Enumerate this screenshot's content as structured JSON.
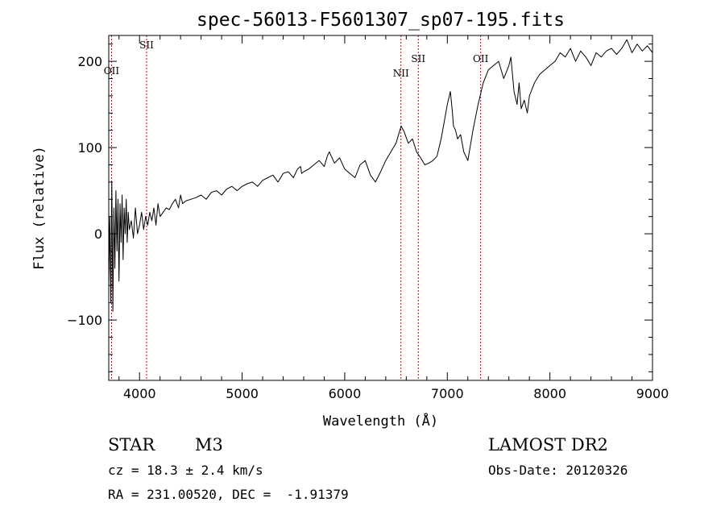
{
  "chart_data": {
    "type": "line",
    "title": "spec-56013-F5601307_sp07-195.fits",
    "xlabel": "Wavelength (Å)",
    "ylabel": "Flux (relative)",
    "xlim": [
      3700,
      9000
    ],
    "ylim": [
      -170,
      230
    ],
    "xticks": [
      4000,
      5000,
      6000,
      7000,
      8000,
      9000
    ],
    "yticks": [
      -100,
      0,
      100,
      200
    ],
    "grid": false,
    "line_color": "#000000",
    "marker_color": "#cc0000",
    "lines": [
      {
        "label": "OII",
        "x": 3727
      },
      {
        "label": "SII",
        "x": 4069
      },
      {
        "label": "NII",
        "x": 6548
      },
      {
        "label": "SII",
        "x": 6717
      },
      {
        "label": "OII",
        "x": 7325
      }
    ],
    "series": [
      {
        "x": [
          3700,
          3710,
          3720,
          3730,
          3740,
          3750,
          3760,
          3770,
          3780,
          3790,
          3800,
          3810,
          3820,
          3830,
          3840,
          3850,
          3860,
          3870,
          3880,
          3890,
          3900,
          3920,
          3940,
          3960,
          3980,
          4000,
          4020,
          4040,
          4060,
          4080,
          4100,
          4120,
          4140,
          4160,
          4180,
          4200,
          4230,
          4260,
          4290,
          4320,
          4350,
          4380,
          4400,
          4420,
          4450,
          4500,
          4550,
          4600,
          4650,
          4700,
          4750,
          4800,
          4850,
          4900,
          4950,
          5000,
          5050,
          5100,
          5150,
          5200,
          5250,
          5300,
          5350,
          5400,
          5450,
          5500,
          5540,
          5570,
          5580,
          5600,
          5650,
          5700,
          5750,
          5800,
          5830,
          5850,
          5900,
          5950,
          6000,
          6050,
          6100,
          6150,
          6200,
          6250,
          6300,
          6350,
          6400,
          6450,
          6500,
          6550,
          6580,
          6620,
          6660,
          6700,
          6740,
          6780,
          6820,
          6860,
          6900,
          6940,
          6970,
          7000,
          7030,
          7050,
          7060,
          7080,
          7100,
          7130,
          7160,
          7200,
          7250,
          7300,
          7350,
          7400,
          7450,
          7500,
          7550,
          7600,
          7620,
          7650,
          7680,
          7700,
          7720,
          7750,
          7780,
          7800,
          7850,
          7900,
          7950,
          8000,
          8050,
          8100,
          8150,
          8200,
          8250,
          8300,
          8350,
          8400,
          8450,
          8500,
          8550,
          8600,
          8650,
          8700,
          8750,
          8800,
          8850,
          8900,
          8950,
          9000
        ],
        "y": [
          -60,
          20,
          -80,
          60,
          -90,
          30,
          -40,
          50,
          -20,
          40,
          -55,
          35,
          -10,
          45,
          -30,
          30,
          0,
          40,
          -10,
          25,
          5,
          15,
          -5,
          30,
          0,
          10,
          25,
          5,
          20,
          10,
          25,
          15,
          30,
          10,
          35,
          20,
          25,
          30,
          28,
          35,
          40,
          30,
          45,
          35,
          38,
          40,
          42,
          45,
          40,
          48,
          50,
          45,
          52,
          55,
          50,
          55,
          58,
          60,
          55,
          62,
          65,
          68,
          60,
          70,
          72,
          65,
          75,
          78,
          70,
          72,
          75,
          80,
          85,
          78,
          90,
          95,
          82,
          88,
          75,
          70,
          65,
          80,
          85,
          68,
          60,
          72,
          85,
          95,
          105,
          125,
          118,
          105,
          110,
          95,
          88,
          80,
          82,
          85,
          90,
          110,
          130,
          150,
          165,
          140,
          125,
          120,
          110,
          115,
          95,
          85,
          120,
          150,
          175,
          190,
          195,
          200,
          180,
          195,
          205,
          165,
          150,
          175,
          145,
          155,
          140,
          160,
          175,
          185,
          190,
          195,
          200,
          210,
          205,
          215,
          200,
          212,
          205,
          195,
          210,
          205,
          212,
          215,
          208,
          215,
          225,
          210,
          220,
          212,
          218,
          210
        ]
      }
    ]
  },
  "info": {
    "object_class": "STAR",
    "subclass": "M3",
    "survey": "LAMOST DR2",
    "redshift": "cz = 18.3 ± 2.4 km/s",
    "obs_date": "Obs-Date: 20120326",
    "coords": "RA = 231.00520, DEC =  -1.91379"
  }
}
